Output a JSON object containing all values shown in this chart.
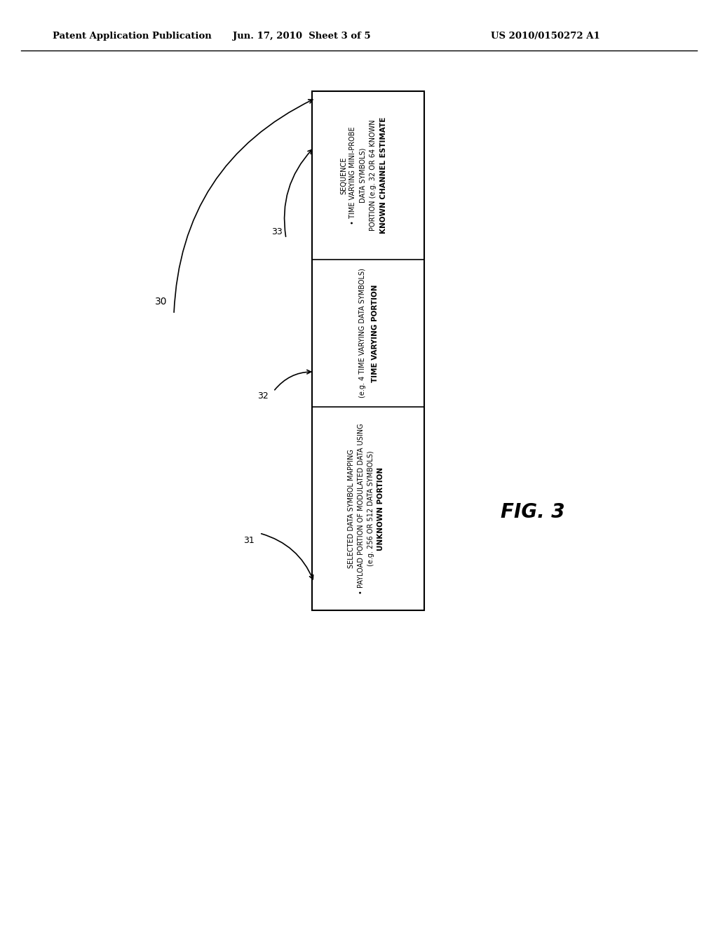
{
  "bg_color": "#ffffff",
  "header_left": "Patent Application Publication",
  "header_center": "Jun. 17, 2010  Sheet 3 of 5",
  "header_right": "US 2010/0150272 A1",
  "fig_label": "FIG. 3",
  "label_30": "30",
  "label_31": "31",
  "label_32": "32",
  "label_33": "33",
  "box1_title": "UNKNOWN PORTION",
  "box1_line2": "(e.g. 256 OR 512 DATA SYMBOLS)",
  "box1_bullet1": "• PAYLOAD PORTION OF MODULATED DATA USING",
  "box1_bullet2": "SELECTED DATA SYMBOL MAPPING",
  "box2_title": "TIME VARYING PORTION",
  "box2_line2": "(e.g. 4 TIME VARYING DATA SYMBOLS)",
  "box3_title": "KNOWN CHANNEL ESTIMATE",
  "box3_line2": "PORTION (e.g. 32 OR 64 KNOWN",
  "box3_line3": "DATA SYMBOLS)",
  "box3_bullet1": "• TIME VARYING MINI-PROBE",
  "box3_bullet2": "SEQUENCE",
  "font_size_header": 9.5,
  "font_size_box": 7.5,
  "font_size_label": 9,
  "font_size_fig": 20
}
